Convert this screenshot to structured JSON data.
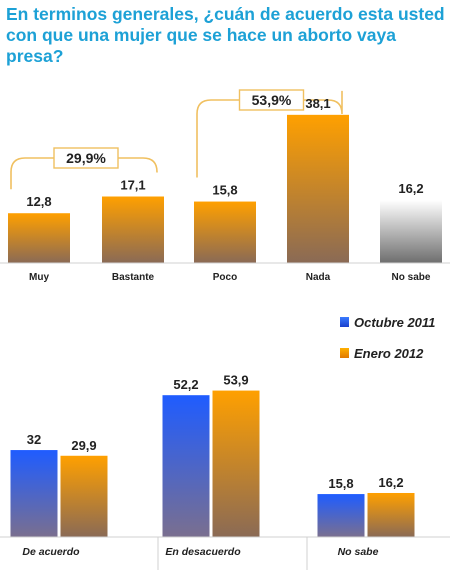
{
  "title": "En terminos generales, ¿cuán de acuerdo esta usted con que una mujer que se hace un aborto vaya presa?",
  "colors": {
    "title": "#1da1d6",
    "orange": "#ff9900",
    "blue": "#1a5cff",
    "gray": "#8c8c8c",
    "bracket": "#f0c060"
  },
  "chart_data": [
    {
      "type": "bar",
      "categories": [
        "Muy",
        "Bastante",
        "Poco",
        "Nada",
        "No sabe"
      ],
      "values": [
        12.8,
        17.1,
        15.8,
        38.1,
        16.2
      ],
      "value_labels": [
        "12,8",
        "17,1",
        "15,8",
        "38,1",
        "16,2"
      ],
      "ylim": [
        0,
        45
      ],
      "grid": false,
      "annotations": [
        {
          "text": "29,9%",
          "spans": [
            "Muy",
            "Bastante"
          ]
        },
        {
          "text": "53,9%",
          "spans": [
            "Poco",
            "Nada"
          ]
        }
      ]
    },
    {
      "type": "bar",
      "categories": [
        "De acuerdo",
        "En desacuerdo",
        "No sabe"
      ],
      "series": [
        {
          "name": "Octubre 2011",
          "values": [
            32,
            52.2,
            15.8
          ],
          "value_labels": [
            "32",
            "52,2",
            "15,8"
          ]
        },
        {
          "name": "Enero 2012",
          "values": [
            29.9,
            53.9,
            16.2
          ],
          "value_labels": [
            "29,9",
            "53,9",
            "16,2"
          ]
        }
      ],
      "ylim": [
        0,
        60
      ],
      "grid": false,
      "legend": "top-right"
    }
  ]
}
